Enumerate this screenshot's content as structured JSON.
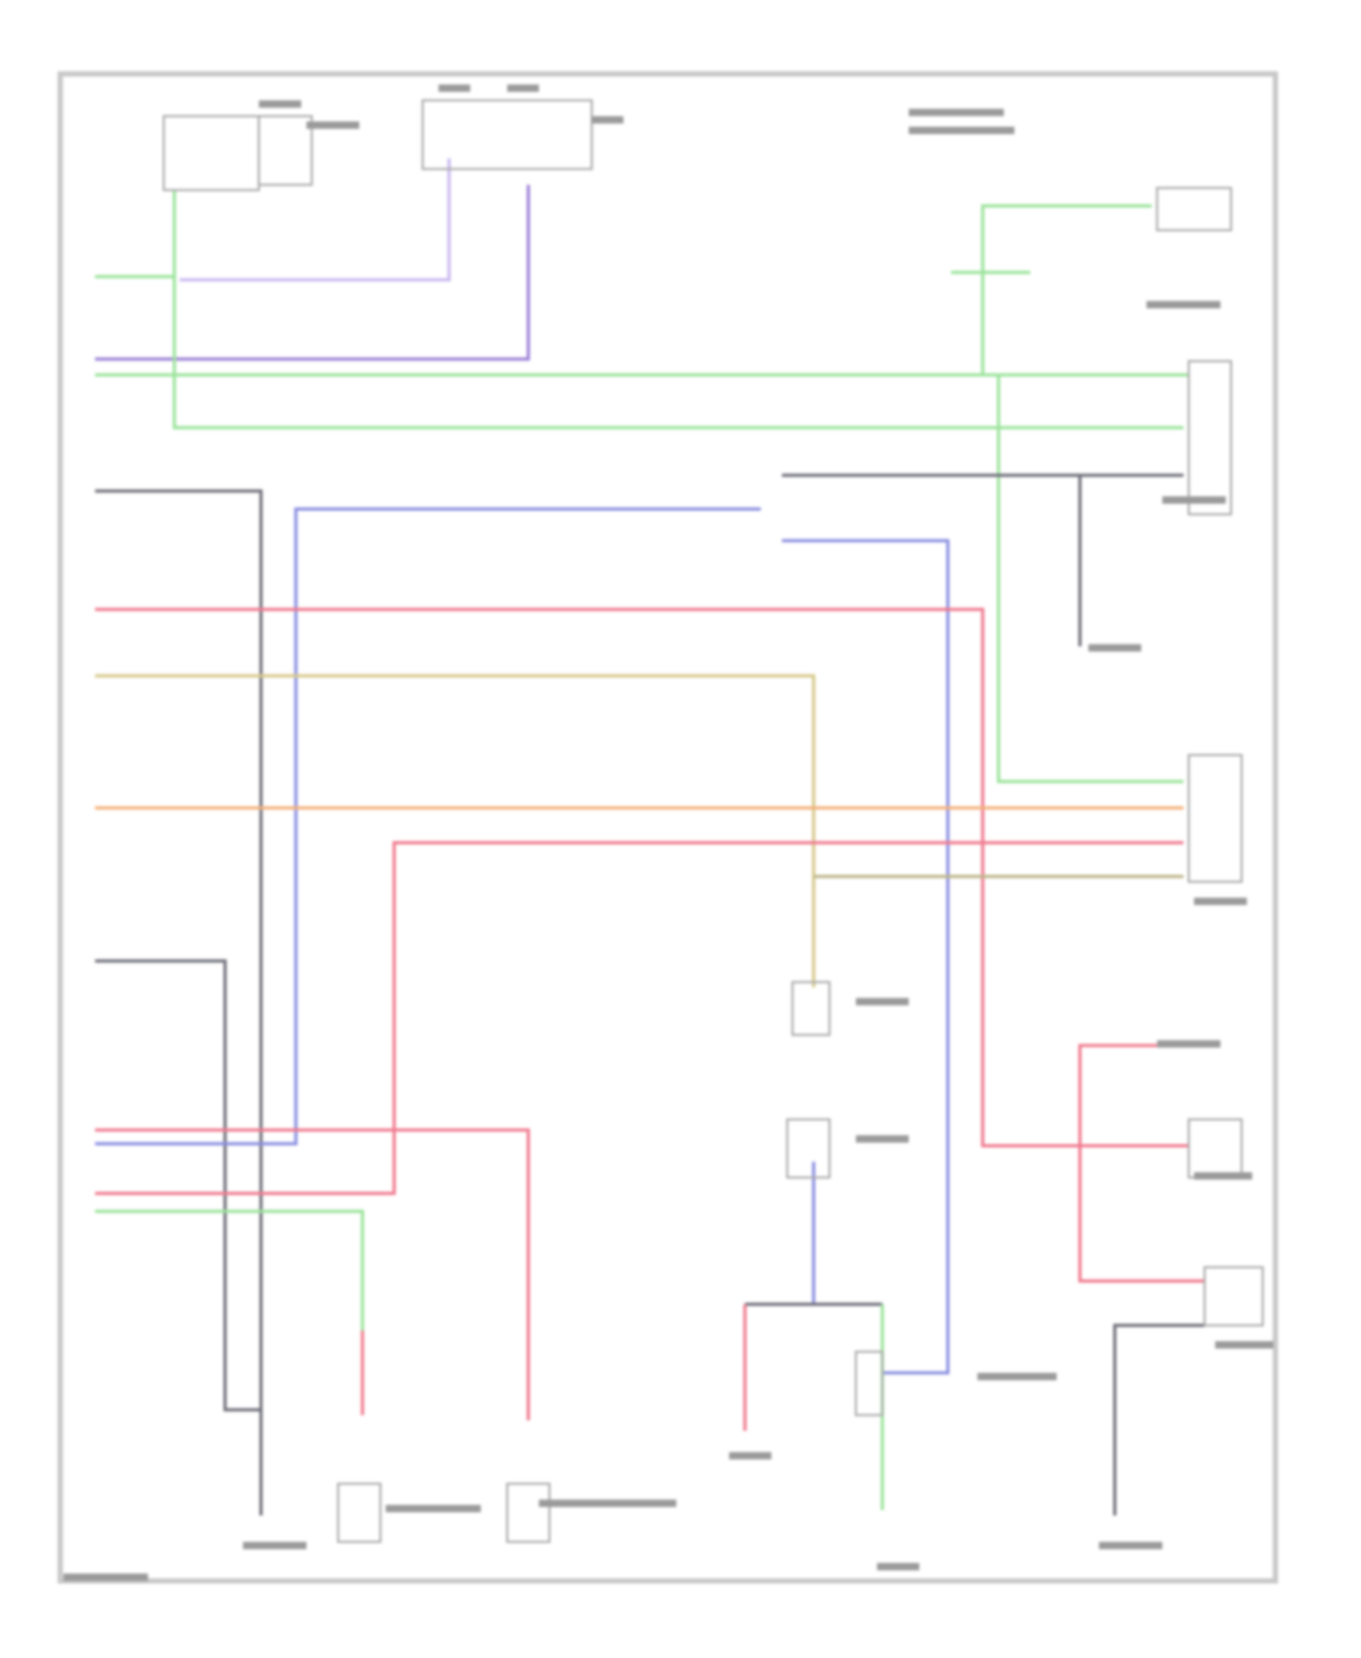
{
  "diagram": {
    "type": "wiring-schematic",
    "text_legible": false,
    "wire_colors": {
      "green": "#9be39b",
      "purple": "#9b7fd6",
      "lavender": "#c9b8f0",
      "gray": "#6f6f7a",
      "blue": "#8a8fe0",
      "pink": "#f07a8e",
      "tan": "#d7c98a",
      "orange": "#f3b07a",
      "olive": "#bdb58a",
      "frame": "#c8c8c8"
    }
  }
}
